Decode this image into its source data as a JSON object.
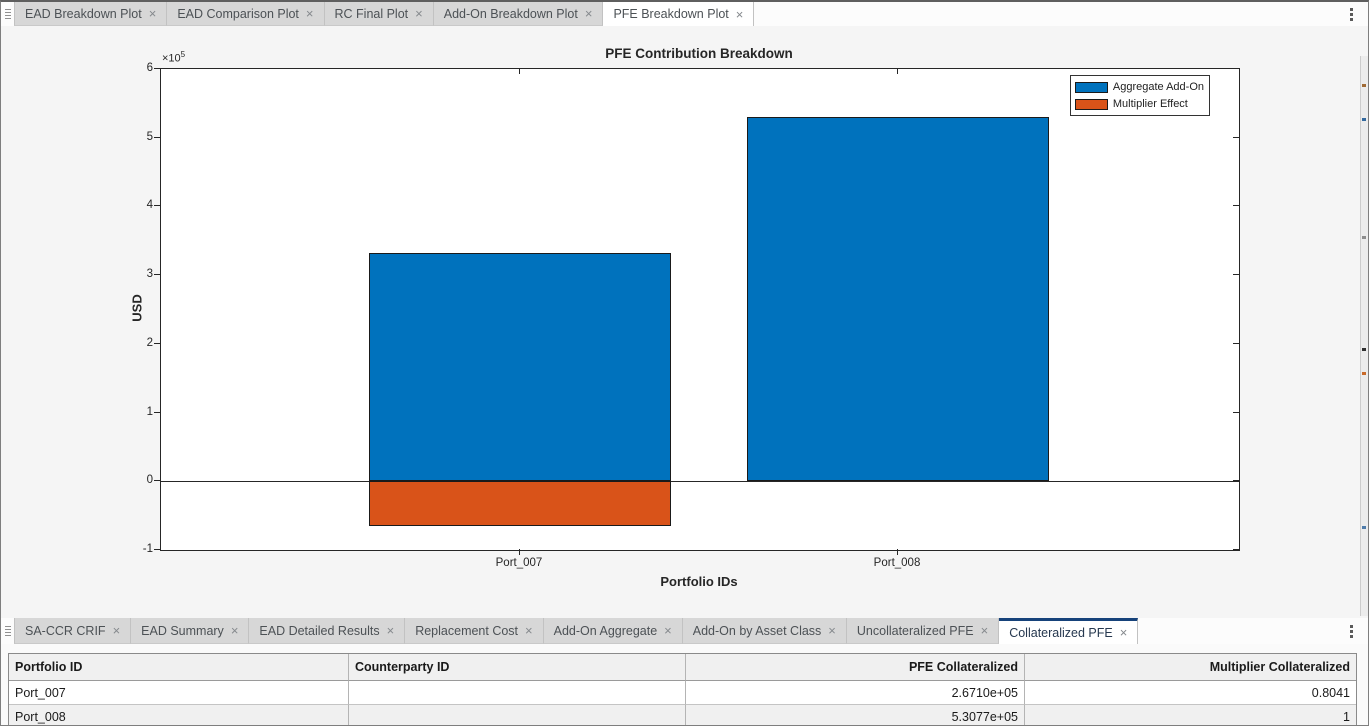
{
  "colors": {
    "active_tab_accent": "#16427a",
    "bar_blue": "#0072BD",
    "bar_orange": "#D95319",
    "axes_edge": "#262626"
  },
  "icons": {
    "close": "×",
    "overflow": "vertical-ellipsis",
    "axes_toolbar": "horizontal-ellipsis",
    "grip": "drag-handle"
  },
  "top_tabs": {
    "items": [
      {
        "label": "EAD Breakdown Plot",
        "active": false
      },
      {
        "label": "EAD Comparison Plot",
        "active": false
      },
      {
        "label": "RC Final Plot",
        "active": false
      },
      {
        "label": "Add-On Breakdown Plot",
        "active": false
      },
      {
        "label": "PFE Breakdown Plot",
        "active": true
      }
    ]
  },
  "chart": {
    "title": "PFE Contribution Breakdown",
    "xlabel": "Portfolio IDs",
    "ylabel": "USD",
    "y_exponent_base": "×10",
    "y_exponent_power": "5",
    "y_ticks": [
      "6",
      "5",
      "4",
      "3",
      "2",
      "1",
      "0",
      "-1"
    ]
  },
  "chart_data": {
    "type": "bar",
    "stacked": true,
    "title": "PFE Contribution Breakdown",
    "xlabel": "Portfolio IDs",
    "ylabel": "USD",
    "categories": [
      "Port_007",
      "Port_008"
    ],
    "series": [
      {
        "name": "Aggregate Add-On",
        "color": "#0072BD",
        "values": [
          332170,
          530770
        ]
      },
      {
        "name": "Multiplier Effect",
        "color": "#D95319",
        "values": [
          -65070,
          0
        ]
      }
    ],
    "ylim": [
      -100000,
      600000
    ],
    "y_tick_step": 100000,
    "y_scale_exponent": 5,
    "grid": false,
    "legend_position": "northeast-inside",
    "layout": {
      "bar_centers_pct": [
        33.3,
        68.37
      ],
      "bar_width_pct": 28.0
    }
  },
  "bottom_tabs": {
    "items": [
      {
        "label": "SA-CCR CRIF",
        "active": false
      },
      {
        "label": "EAD Summary",
        "active": false
      },
      {
        "label": "EAD Detailed Results",
        "active": false
      },
      {
        "label": "Replacement Cost",
        "active": false
      },
      {
        "label": "Add-On Aggregate",
        "active": false
      },
      {
        "label": "Add-On by Asset Class",
        "active": false
      },
      {
        "label": "Uncollateralized PFE",
        "active": false
      },
      {
        "label": "Collateralized PFE",
        "active": true
      }
    ]
  },
  "table": {
    "columns": [
      "Portfolio ID",
      "Counterparty ID",
      "PFE Collateralized",
      "Multiplier Collateralized"
    ],
    "column_alignments": [
      "left",
      "left",
      "right",
      "right"
    ],
    "rows": [
      [
        "Port_007",
        "",
        "2.6710e+05",
        "0.8041"
      ],
      [
        "Port_008",
        "",
        "5.3077e+05",
        "1"
      ]
    ]
  }
}
